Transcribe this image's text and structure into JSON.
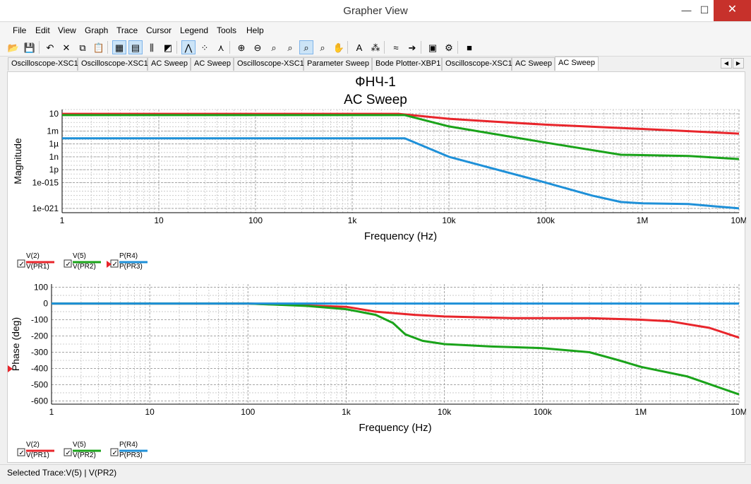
{
  "window": {
    "title": "Grapher View",
    "min_icon": "minimize-icon",
    "max_icon": "maximize-icon",
    "close_icon": "close-icon"
  },
  "menu": [
    "File",
    "Edit",
    "View",
    "Graph",
    "Trace",
    "Cursor",
    "Legend",
    "Tools",
    "Help"
  ],
  "toolbar": [
    {
      "name": "open-icon",
      "glyph": "📂"
    },
    {
      "name": "save-icon",
      "glyph": "💾"
    },
    {
      "name": "undo-icon",
      "glyph": "↶"
    },
    {
      "name": "cut-icon",
      "glyph": "✕"
    },
    {
      "name": "copy-icon",
      "glyph": "⧉"
    },
    {
      "name": "paste-icon",
      "glyph": "📋"
    },
    {
      "name": "grid-icon",
      "glyph": "▦",
      "active": true
    },
    {
      "name": "legend-icon",
      "glyph": "▤",
      "active": true
    },
    {
      "name": "cursors-icon",
      "glyph": "⫼"
    },
    {
      "name": "overlay-icon",
      "glyph": "◩"
    },
    {
      "name": "lines-icon",
      "glyph": "⋀",
      "active": true
    },
    {
      "name": "points-icon",
      "glyph": "⁘"
    },
    {
      "name": "lines-points-icon",
      "glyph": "⋏"
    },
    {
      "name": "zoom-in-icon",
      "glyph": "⊕"
    },
    {
      "name": "zoom-out-icon",
      "glyph": "⊖"
    },
    {
      "name": "zoom-area-icon",
      "glyph": "⌕"
    },
    {
      "name": "zoom-x-icon",
      "glyph": "⌕"
    },
    {
      "name": "zoom-full-icon",
      "glyph": "⌕",
      "active": true
    },
    {
      "name": "zoom-y-icon",
      "glyph": "⌕"
    },
    {
      "name": "pan-icon",
      "glyph": "✋"
    },
    {
      "name": "text-icon",
      "glyph": "A"
    },
    {
      "name": "label-icon",
      "glyph": "⁂"
    },
    {
      "name": "trace-icon",
      "glyph": "≈"
    },
    {
      "name": "export-icon",
      "glyph": "➔"
    },
    {
      "name": "print-icon",
      "glyph": "▣"
    },
    {
      "name": "properties-icon",
      "glyph": "⚙"
    },
    {
      "name": "stop-icon",
      "glyph": "■"
    }
  ],
  "tabs": [
    "Oscilloscope-XSC1",
    "Oscilloscope-XSC1",
    "AC Sweep",
    "AC Sweep",
    "Oscilloscope-XSC1",
    "Parameter Sweep",
    "Bode Plotter-XBP1",
    "Oscilloscope-XSC1",
    "AC Sweep",
    "AC Sweep"
  ],
  "active_tab_index": 9,
  "tab_scroll": {
    "left": "◀",
    "right": "▶"
  },
  "status": "Selected Trace:V(5) | V(PR2)",
  "colors": {
    "red": "#e8252b",
    "green": "#1aa31a",
    "blue": "#1e90d8",
    "grid": "#a9a9a9"
  },
  "chart_data": [
    {
      "type": "line",
      "title": "ФНЧ-1",
      "subtitle": "AC Sweep",
      "xlabel": "Frequency (Hz)",
      "ylabel": "Magnitude",
      "xscale": "log",
      "yscale": "log",
      "xlim": [
        1,
        10000000
      ],
      "ylim": [
        1e-22,
        100
      ],
      "xticks": [
        1,
        10,
        100,
        1000,
        10000,
        100000,
        1000000,
        10000000
      ],
      "xtick_labels": [
        "1",
        "10",
        "100",
        "1k",
        "10k",
        "100k",
        "1M",
        "10M"
      ],
      "yticks": [
        10,
        0.001,
        1e-06,
        1e-09,
        1e-12,
        1e-15,
        1e-21
      ],
      "ytick_labels": [
        "10",
        "1m",
        "1µ",
        "1n",
        "1p",
        "1e-015",
        "1e-021"
      ],
      "grid": true,
      "series": [
        {
          "name": "V(2) / V(PR1)",
          "color": "#e8252b",
          "x": [
            1,
            3000,
            10000,
            30000,
            100000,
            1000000,
            10000000
          ],
          "y": [
            10,
            10,
            0.7,
            0.15,
            0.03,
            0.003,
            0.00025
          ]
        },
        {
          "name": "V(5) / V(PR2)",
          "color": "#1aa31a",
          "x": [
            1,
            3500,
            10000,
            100000,
            600000,
            3000000,
            10000000
          ],
          "y": [
            5,
            5,
            0.012,
            2e-06,
            3e-09,
            1.5e-09,
            3e-10
          ]
        },
        {
          "name": "P(R4) / P(PR3)",
          "color": "#1e90d8",
          "x": [
            1,
            3500,
            10000,
            100000,
            300000,
            600000,
            1000000,
            3000000,
            10000000
          ],
          "y": [
            2e-05,
            2e-05,
            1e-09,
            1e-15,
            1e-18,
            3e-20,
            1.5e-20,
            1e-20,
            1e-21
          ]
        }
      ]
    },
    {
      "type": "line",
      "xlabel": "Frequency (Hz)",
      "ylabel": "Phase (deg)",
      "xscale": "log",
      "xlim": [
        1,
        10000000
      ],
      "ylim": [
        -620,
        120
      ],
      "xticks": [
        1,
        10,
        100,
        1000,
        10000,
        100000,
        1000000,
        10000000
      ],
      "xtick_labels": [
        "1",
        "10",
        "100",
        "1k",
        "10k",
        "100k",
        "1M",
        "10M"
      ],
      "yticks": [
        100,
        0,
        -100,
        -200,
        -300,
        -400,
        -500,
        -600
      ],
      "ytick_labels": [
        "100",
        "0",
        "-100",
        "-200",
        "-300",
        "-400",
        "-500",
        "-600"
      ],
      "grid": true,
      "series": [
        {
          "name": "V(2) / V(PR1)",
          "color": "#e8252b",
          "x": [
            1,
            100,
            1000,
            2000,
            5000,
            10000,
            50000,
            300000,
            1000000,
            2000000,
            5000000,
            10000000
          ],
          "y": [
            0,
            0,
            -20,
            -50,
            -70,
            -80,
            -90,
            -90,
            -100,
            -110,
            -150,
            -210
          ]
        },
        {
          "name": "V(5) / V(PR2)",
          "color": "#1aa31a",
          "x": [
            1,
            100,
            400,
            1000,
            2000,
            3000,
            4000,
            6000,
            10000,
            30000,
            100000,
            300000,
            600000,
            1000000,
            3000000,
            10000000
          ],
          "y": [
            0,
            0,
            -15,
            -35,
            -70,
            -120,
            -190,
            -230,
            -250,
            -265,
            -275,
            -300,
            -350,
            -390,
            -450,
            -560
          ]
        },
        {
          "name": "P(R4) / P(PR3)",
          "color": "#1e90d8",
          "x": [
            1,
            10000000
          ],
          "y": [
            0,
            0
          ]
        }
      ]
    }
  ],
  "legend": [
    {
      "top": "V(2)",
      "bottom": "V(PR1)",
      "color": "#e8252b"
    },
    {
      "top": "V(5)",
      "bottom": "V(PR2)",
      "color": "#1aa31a"
    },
    {
      "top": "P(R4)",
      "bottom": "P(PR3)",
      "color": "#1e90d8"
    }
  ]
}
